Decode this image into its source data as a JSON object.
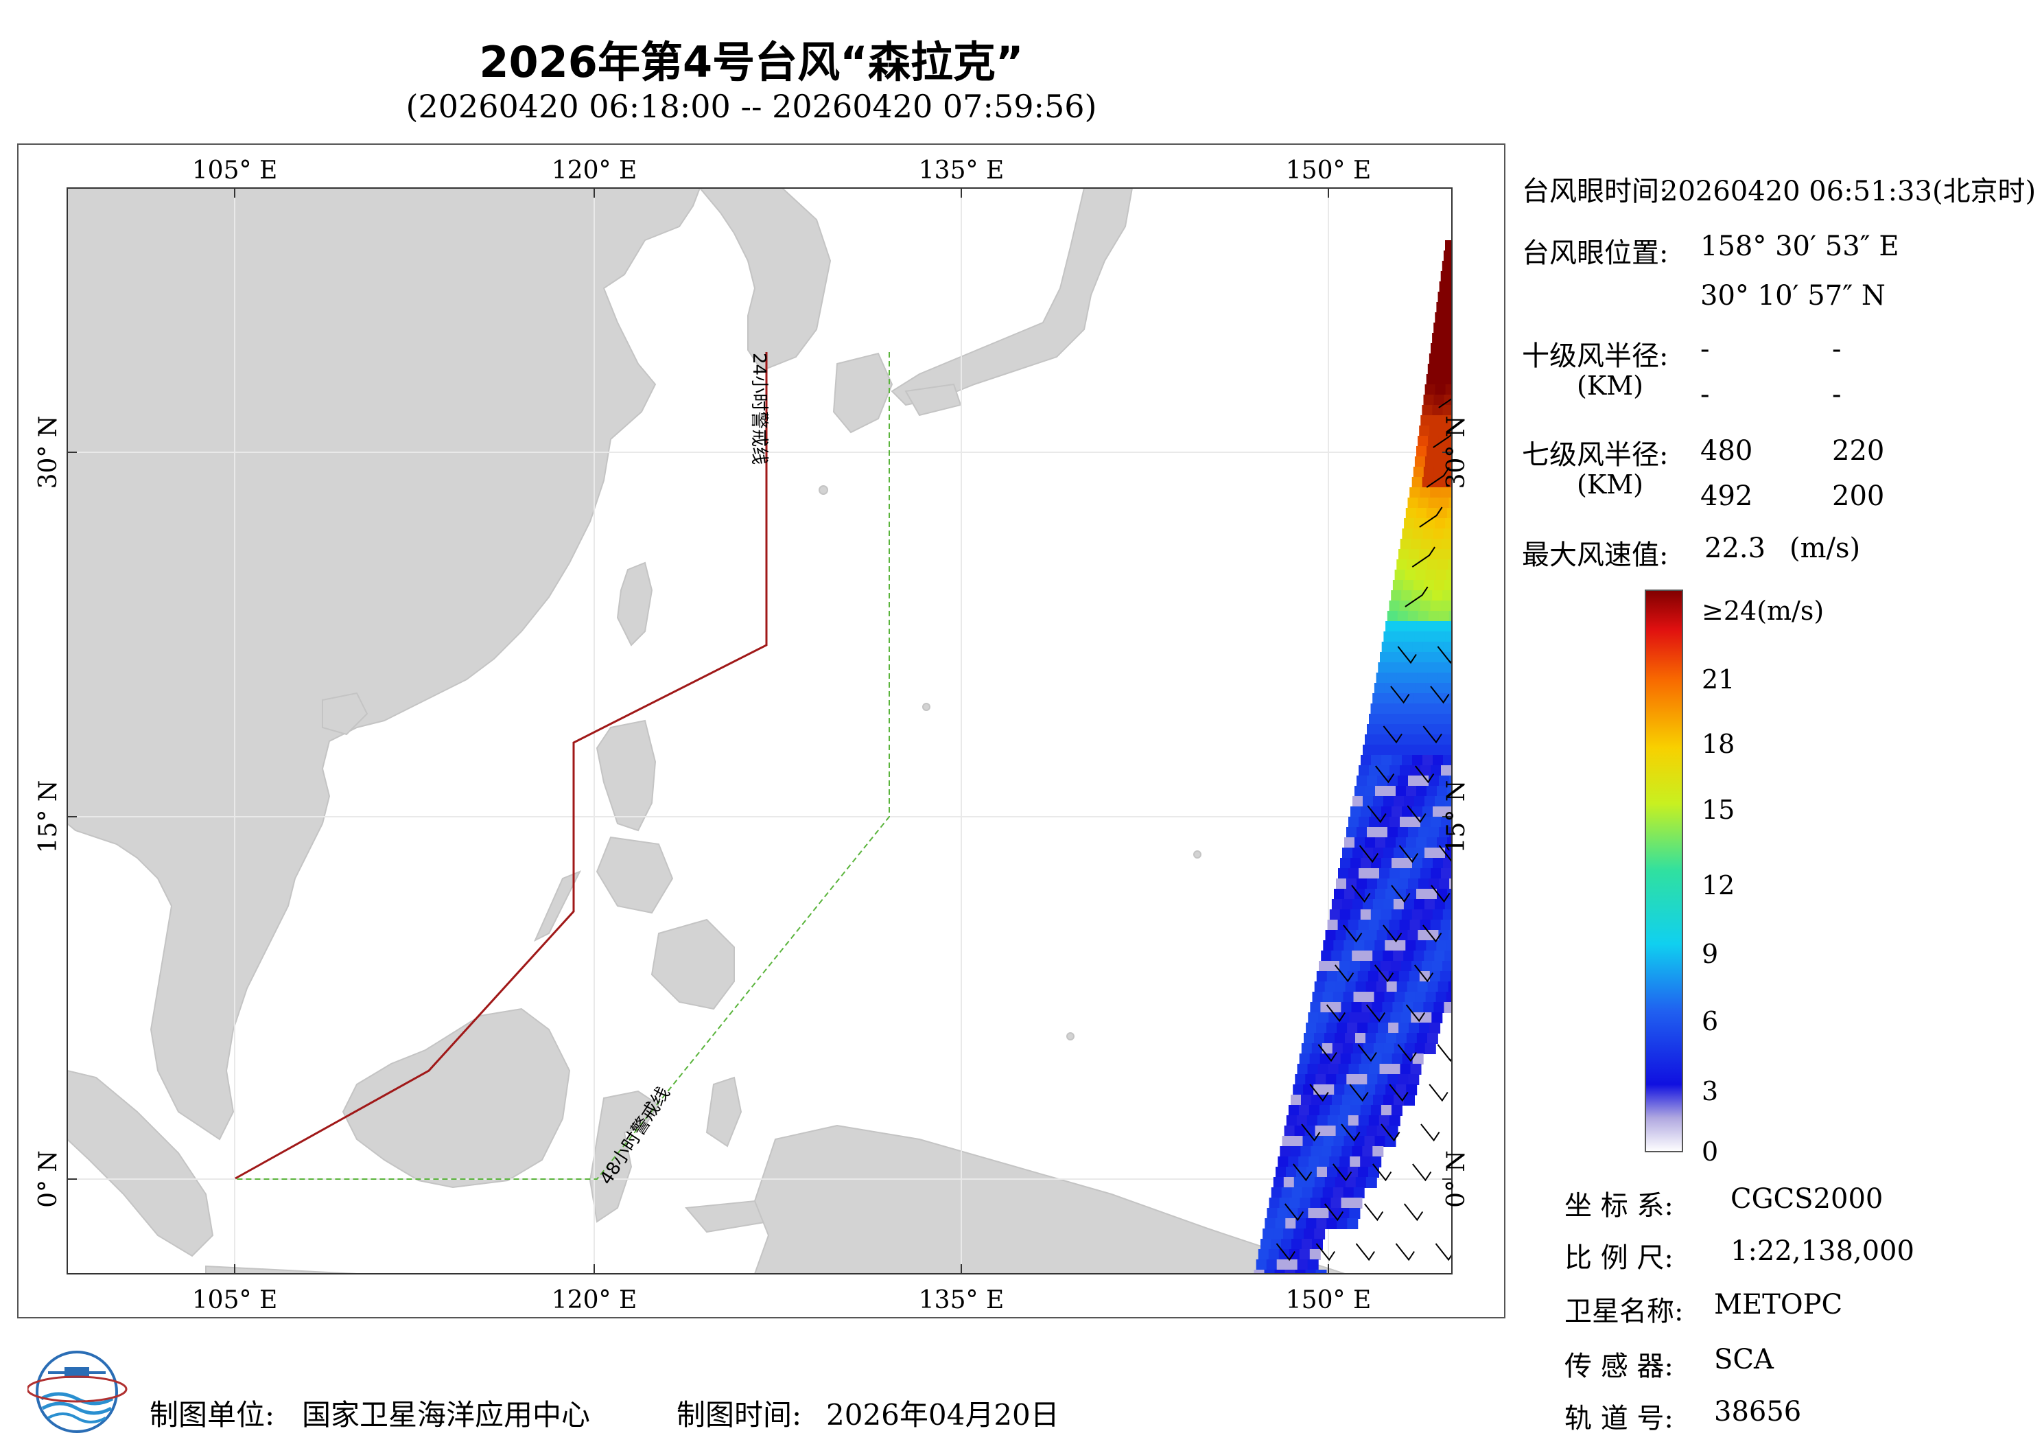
{
  "header": {
    "title": "2026年第4号台风“森拉克”",
    "subtitle": "(20260420 06:18:00 -- 20260420 07:59:56)"
  },
  "map": {
    "lon_labels": [
      "105° E",
      "120° E",
      "135° E",
      "150° E"
    ],
    "lat_labels": [
      "30° N",
      "15° N",
      "0° N"
    ],
    "warning_line_24h": "24小时警戒线",
    "warning_line_48h": "48小时警戒线",
    "land_color": "#d3d3d3",
    "line_24h_color": "#a01818",
    "line_48h_color": "#5ab43c"
  },
  "info": {
    "eye_time_label": "台风眼时间:",
    "eye_time_value": "20260420 06:51:33(北京时)",
    "eye_pos_label": "台风眼位置:",
    "eye_lon": "158° 30′ 53″ E",
    "eye_lat": "30° 10′ 57″ N",
    "r10_label": "十级风半径:",
    "r10_unit": "(KM)",
    "r10_values": [
      "-",
      "-",
      "-",
      "-"
    ],
    "r7_label": "七级风半径:",
    "r7_unit": "(KM)",
    "r7_values": [
      "480",
      "220",
      "492",
      "200"
    ],
    "max_wind_label": "最大风速值:",
    "max_wind_value": "22.3",
    "max_wind_unit": "(m/s)"
  },
  "colorbar": {
    "top_label": "≥24(m/s)",
    "labels": [
      "21",
      "18",
      "15",
      "12",
      "9",
      "6",
      "3",
      "0"
    ]
  },
  "meta": {
    "crs_label": "坐 标 系:",
    "crs_value": "CGCS2000",
    "scale_label": "比 例 尺:",
    "scale_value": "1:22,138,000",
    "sat_label": "卫星名称:",
    "sat_value": "METOPC",
    "sensor_label": "传 感 器:",
    "sensor_value": "SCA",
    "orbit_label": "轨 道 号:",
    "orbit_value": "38656"
  },
  "footer": {
    "unit_label": "制图单位:",
    "unit_value": "国家卫星海洋应用中心",
    "time_label": "制图时间:",
    "time_value": "2026年04月20日"
  }
}
